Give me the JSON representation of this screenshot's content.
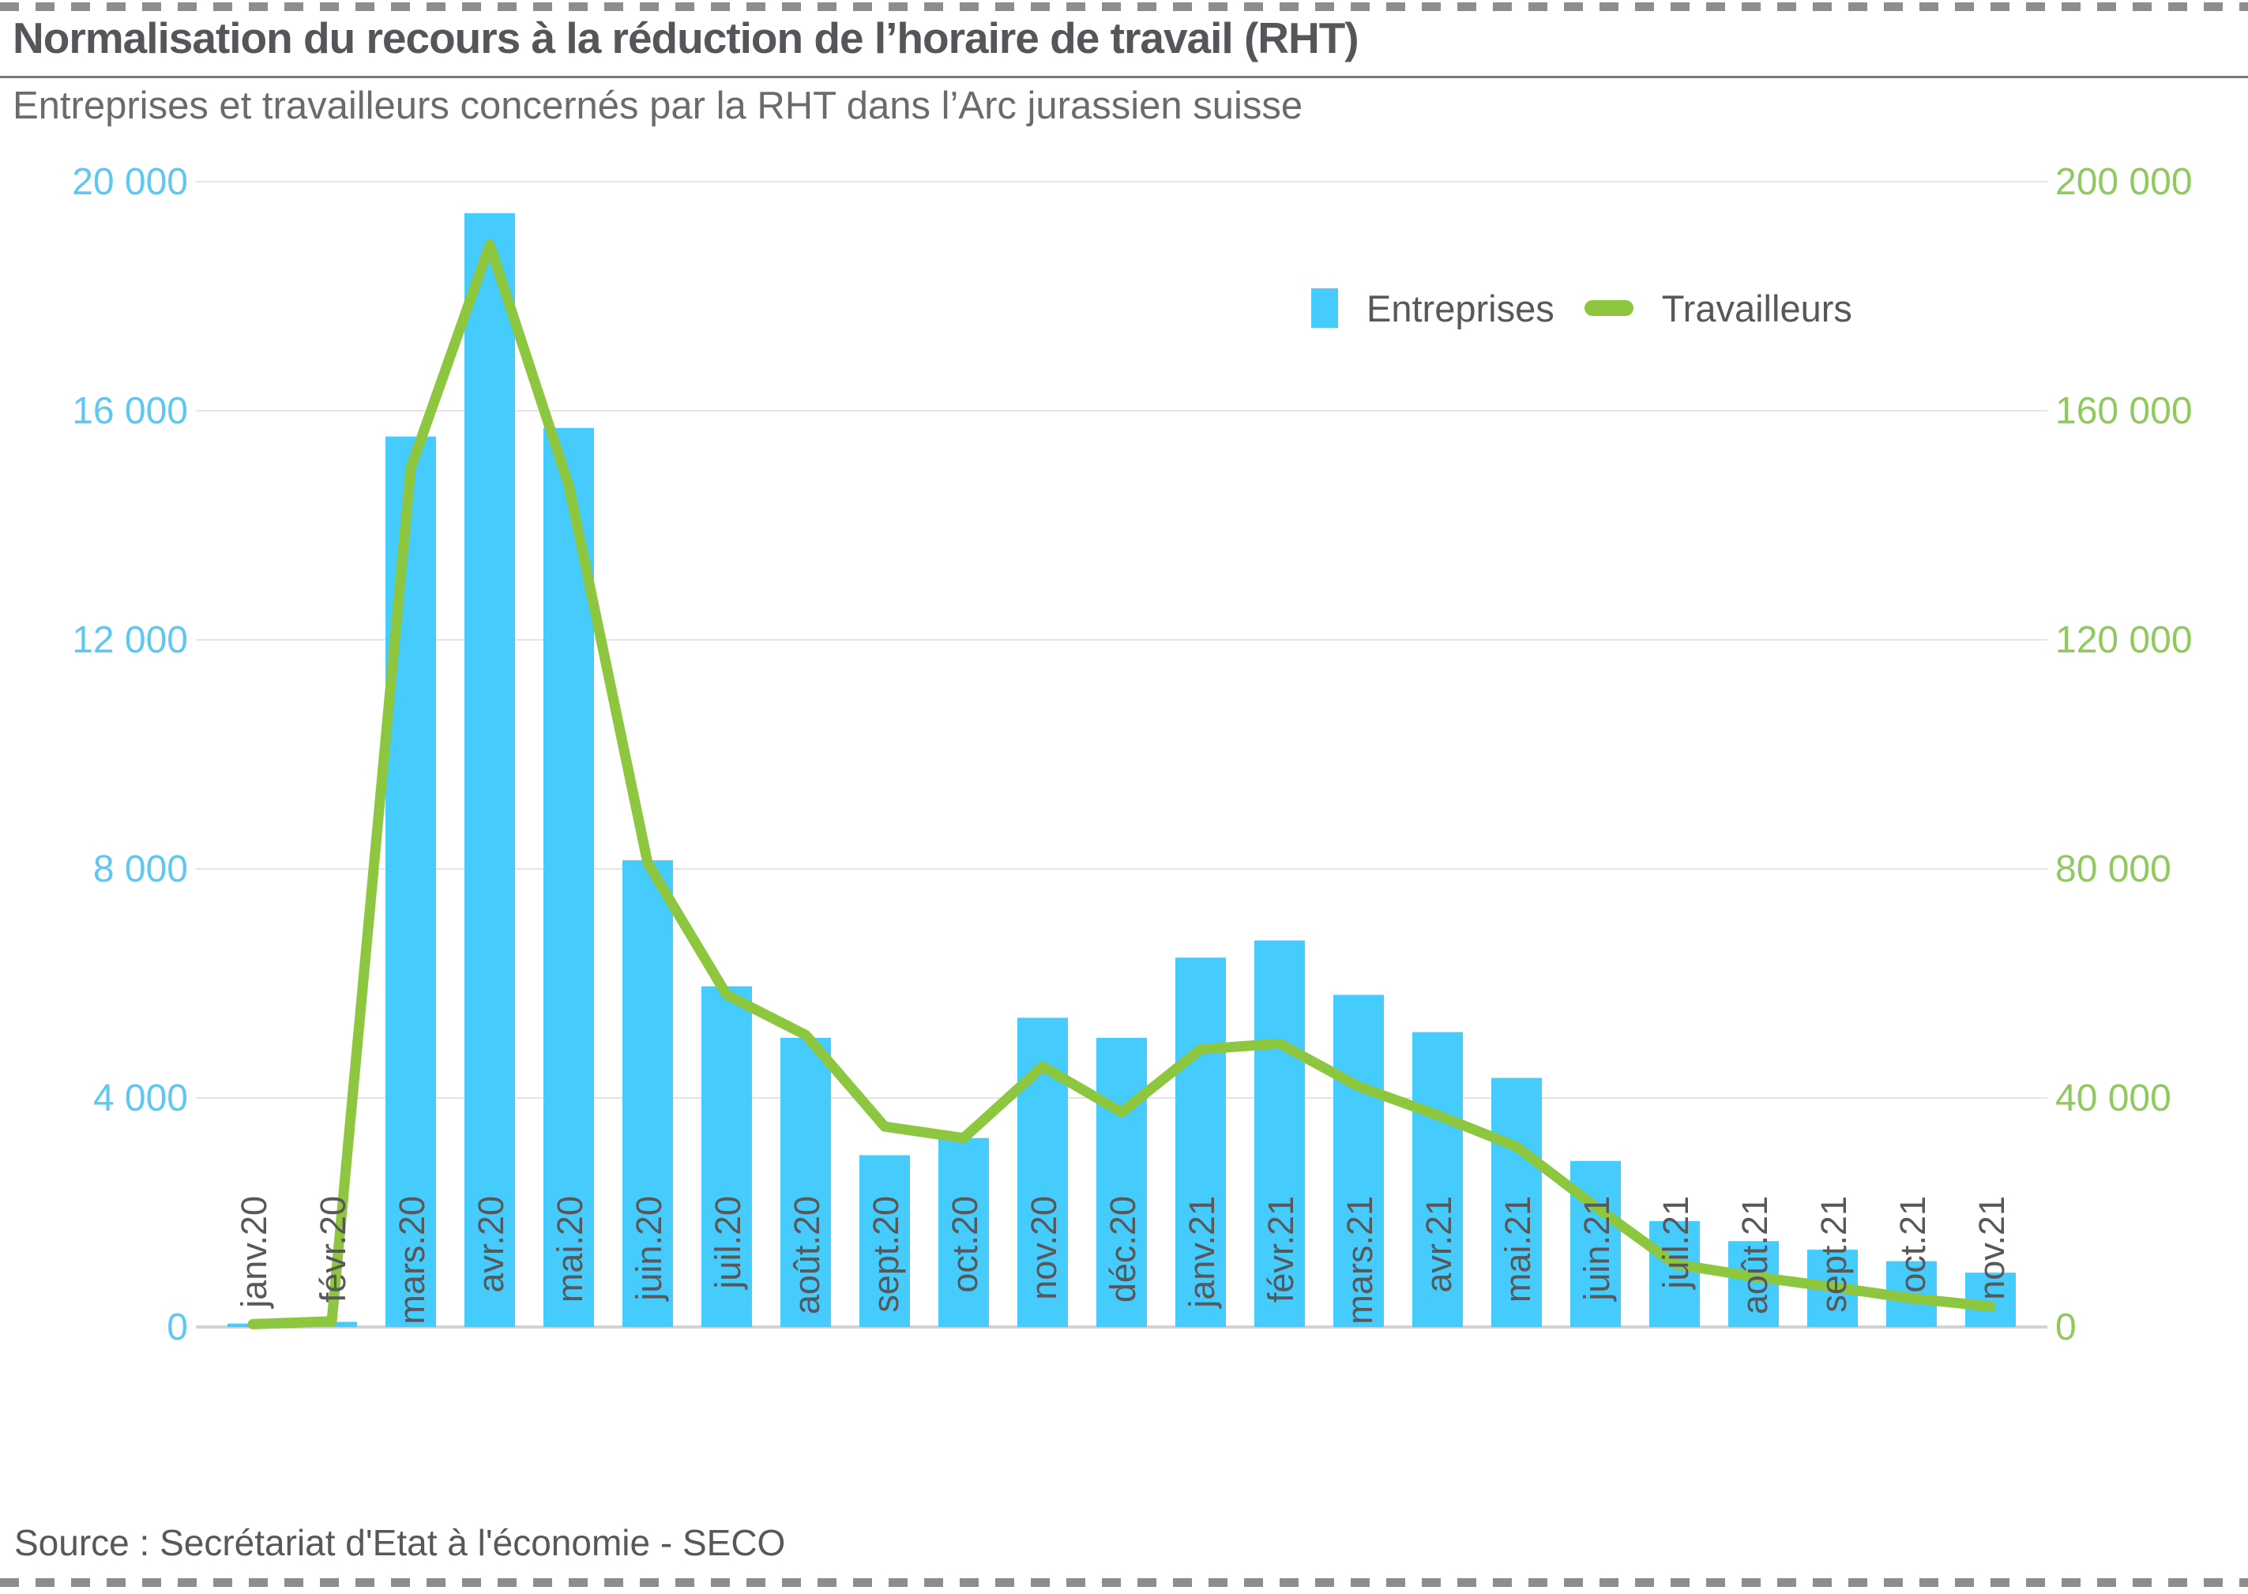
{
  "page": {
    "title": "Normalisation du recours à la réduction de l’horaire de travail (RHT)",
    "subtitle": "Entreprises et travailleurs concernés par la RHT dans l’Arc jurassien suisse",
    "source": "Source : Secrétariat d'Etat à l'économie - SECO"
  },
  "legend": {
    "entreprises_label": "Entreprises",
    "travailleurs_label": "Travailleurs"
  },
  "colors": {
    "bar_blue": "#45cbfc",
    "line_green": "#8dc63f",
    "left_axis_text": "#5ec8f4",
    "right_axis_text": "#90ca5e",
    "month_text": "#58585a",
    "gridline": "#e4e4e4",
    "zero_line": "#d2d2d2",
    "dashed_border": "#8d8d8d"
  },
  "chart_data": {
    "type": "bar",
    "title": "Normalisation du recours à la réduction de l’horaire de travail (RHT)",
    "subtitle": "Entreprises et travailleurs concernés par la RHT dans l’Arc jurassien suisse",
    "grid": "horizontal",
    "legend_position": "top-right",
    "categories": [
      "janv.20",
      "févr.20",
      "mars.20",
      "avr.20",
      "mai.20",
      "juin.20",
      "juil.20",
      "août.20",
      "sept.20",
      "oct.20",
      "nov.20",
      "déc.20",
      "janv.21",
      "févr.21",
      "mars.21",
      "avr.21",
      "mai.21",
      "juin.21",
      "juil.21",
      "août.21",
      "sept.21",
      "oct.21",
      "nov.21"
    ],
    "series": [
      {
        "name": "Entreprises",
        "type": "bar",
        "axis": "left",
        "values": [
          60,
          90,
          15550,
          19450,
          15700,
          8150,
          5950,
          5050,
          3000,
          3300,
          5400,
          5050,
          6450,
          6750,
          5800,
          5150,
          4350,
          2900,
          1850,
          1500,
          1350,
          1150,
          950
        ]
      },
      {
        "name": "Travailleurs",
        "type": "line",
        "axis": "right",
        "values": [
          500,
          1000,
          150000,
          189000,
          147000,
          81000,
          58000,
          51000,
          35000,
          33000,
          45500,
          37500,
          48500,
          49500,
          42000,
          37000,
          31500,
          21000,
          11000,
          8800,
          7000,
          5000,
          3600
        ]
      }
    ],
    "left_axis": {
      "min": 0,
      "max": 20000,
      "tick_values": [
        0,
        4000,
        8000,
        12000,
        16000,
        20000
      ],
      "tick_labels": [
        "0",
        "4 000",
        "8 000",
        "12 000",
        "16 000",
        "20 000"
      ]
    },
    "right_axis": {
      "min": 0,
      "max": 200000,
      "tick_values": [
        0,
        40000,
        80000,
        120000,
        160000,
        200000
      ],
      "tick_labels": [
        "0",
        "40 000",
        "80 000",
        "120 000",
        "160 000",
        "200 000"
      ]
    }
  }
}
